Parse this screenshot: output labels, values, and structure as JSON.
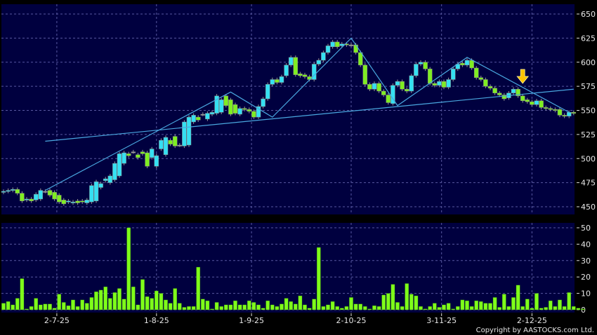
{
  "chart_data": [
    {
      "type": "candlestick",
      "panel": "price",
      "yaxis": {
        "ticks": [
          450,
          475,
          500,
          525,
          550,
          575,
          600,
          625,
          650
        ],
        "ylim": [
          450,
          650
        ],
        "side": "right"
      },
      "grid": true,
      "colors": {
        "background": "#00003f",
        "up": "#35e0f2",
        "down": "#7fee22",
        "doji": "#a0a0a0",
        "trendline": "#4aa8e0",
        "arrow": "#ffc400",
        "grid": "#5858a0"
      },
      "open": [
        465,
        466,
        467,
        468,
        464,
        457,
        458,
        457,
        458,
        466,
        467,
        465,
        462,
        457,
        455,
        454,
        456,
        456,
        454,
        455,
        456,
        470,
        477,
        475,
        478,
        482,
        495,
        505,
        507,
        504,
        507,
        506,
        501,
        492,
        510,
        504,
        519,
        523,
        514,
        513,
        514,
        538,
        543,
        546,
        541,
        546,
        547,
        548,
        565,
        561,
        556,
        546,
        552,
        551,
        549,
        543,
        554,
        562,
        577,
        582,
        579,
        586,
        597,
        605,
        588,
        587,
        585,
        582,
        598,
        602,
        610,
        616,
        621,
        617,
        619,
        618,
        618,
        610,
        597,
        577,
        572,
        578,
        570,
        566,
        557,
        576,
        580,
        572,
        570,
        586,
        598,
        600,
        593,
        578,
        576,
        580,
        574,
        582,
        593,
        599,
        597,
        602,
        594,
        584,
        582,
        575,
        573,
        568,
        566,
        563,
        568,
        572,
        565,
        561,
        559,
        556,
        560,
        553,
        552,
        551,
        551,
        545,
        544,
        548
      ],
      "close": [
        466,
        467,
        468,
        464,
        456,
        458,
        456,
        463,
        467,
        466,
        462,
        458,
        455,
        453,
        456,
        455,
        454,
        455,
        457,
        472,
        476,
        474,
        479,
        482,
        495,
        505,
        506,
        503,
        507,
        501,
        505,
        492,
        510,
        503,
        519,
        522,
        515,
        513,
        514,
        538,
        543,
        545,
        540,
        546,
        547,
        548,
        565,
        561,
        555,
        546,
        547,
        552,
        551,
        549,
        543,
        554,
        562,
        577,
        582,
        579,
        585,
        597,
        605,
        587,
        586,
        585,
        582,
        598,
        602,
        610,
        617,
        621,
        616,
        619,
        618,
        618,
        610,
        597,
        577,
        572,
        578,
        570,
        566,
        558,
        576,
        580,
        572,
        570,
        586,
        598,
        600,
        593,
        578,
        576,
        580,
        574,
        582,
        593,
        598,
        597,
        602,
        594,
        584,
        582,
        575,
        573,
        568,
        566,
        562,
        568,
        572,
        565,
        560,
        559,
        556,
        560,
        553,
        552,
        551,
        550,
        545,
        544,
        548,
        547
      ],
      "trendlines": [
        {
          "points": [
            [
              9,
              518
            ],
            [
              123,
              572
            ]
          ]
        },
        {
          "points": [
            [
              9,
              467
            ],
            [
              49,
              569
            ],
            [
              58,
              543
            ],
            [
              75,
              625
            ],
            [
              85,
              555
            ],
            [
              100,
              605
            ],
            [
              122,
              548
            ]
          ]
        }
      ],
      "annotations": [
        {
          "type": "arrow-down",
          "index": 112,
          "price": 578
        }
      ]
    },
    {
      "type": "bar",
      "panel": "volume",
      "yaxis": {
        "ticks": [
          0,
          10,
          20,
          30,
          40,
          50
        ],
        "ylim": [
          0,
          52
        ],
        "side": "right"
      },
      "grid": true,
      "colors": {
        "bar": "#7fff1a"
      },
      "values": [
        4,
        5,
        3,
        7,
        19,
        0.5,
        2,
        7,
        3,
        3.5,
        3.5,
        1,
        9.5,
        4.5,
        2.5,
        6,
        2,
        6,
        4,
        7.5,
        11,
        12,
        14,
        7,
        10.5,
        13,
        6.5,
        50,
        14,
        3,
        18.5,
        8,
        7,
        11.5,
        10,
        6,
        4,
        13,
        4,
        1.5,
        2,
        2,
        26,
        6.5,
        5.5,
        0.5,
        4.5,
        2,
        3,
        3,
        5.5,
        3,
        3,
        5.5,
        4.5,
        3,
        1,
        5.5,
        3,
        2,
        3.5,
        7,
        5,
        3.5,
        8.5,
        3,
        1,
        6.5,
        38,
        2,
        3,
        5,
        2,
        1,
        2,
        7.5,
        3.5,
        3.5,
        2,
        0.5,
        2.5,
        2,
        9,
        10,
        15.5,
        4.5,
        2,
        16,
        9.5,
        8.5,
        2,
        0.5,
        2,
        4,
        1.5,
        3,
        4,
        0.5,
        2,
        6,
        5.5,
        2,
        5.5,
        5,
        4,
        4,
        7.5,
        1.5,
        9.5,
        2,
        7.5,
        15,
        2,
        6.5,
        1,
        10,
        1,
        1.5,
        5.5,
        2,
        6,
        2,
        10.5,
        2,
        1,
        0.5
      ]
    }
  ],
  "xaxis": {
    "tick_labels": [
      "2-7-25",
      "1-8-25",
      "1-9-25",
      "2-10-25",
      "3-11-25",
      "2-12-25"
    ],
    "tick_index": [
      11.5,
      33,
      53.5,
      75,
      94.5,
      114
    ]
  },
  "copyright": "Copyright by AASTOCKS.com Ltd."
}
